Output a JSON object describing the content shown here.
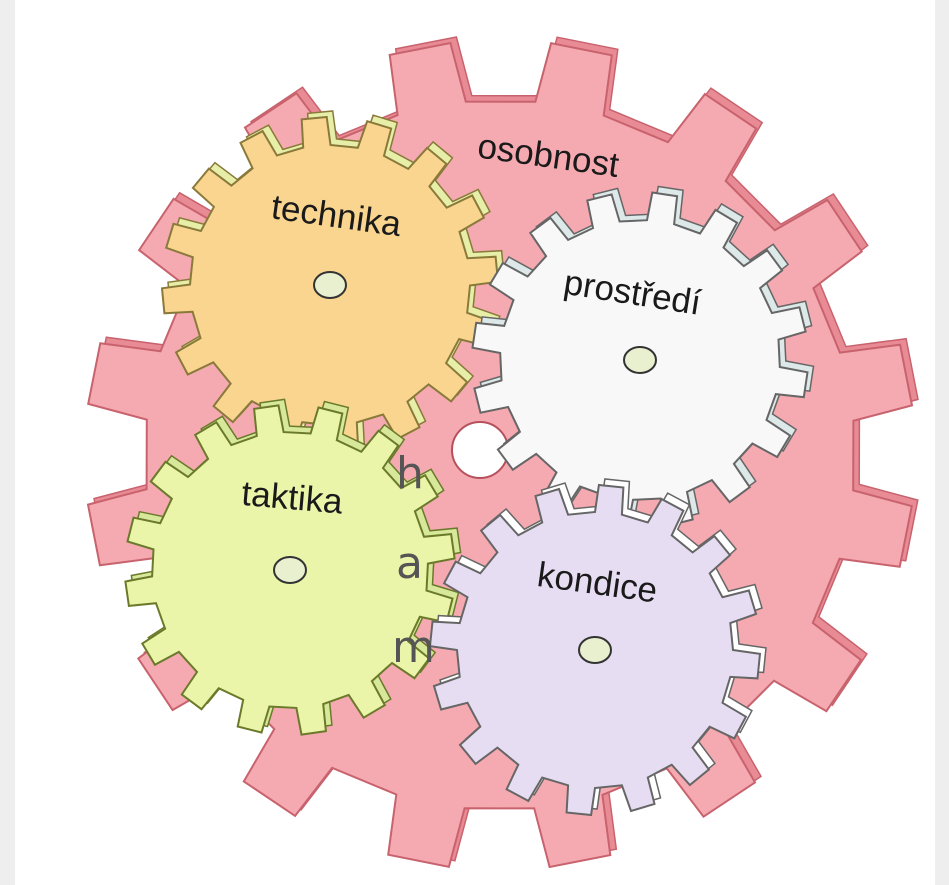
{
  "background_text": [
    "h",
    "a",
    "m"
  ],
  "gears": [
    {
      "label": "osobnost"
    },
    {
      "label": "technika"
    },
    {
      "label": "prostředí"
    },
    {
      "label": "taktika"
    },
    {
      "label": "kondice"
    }
  ]
}
